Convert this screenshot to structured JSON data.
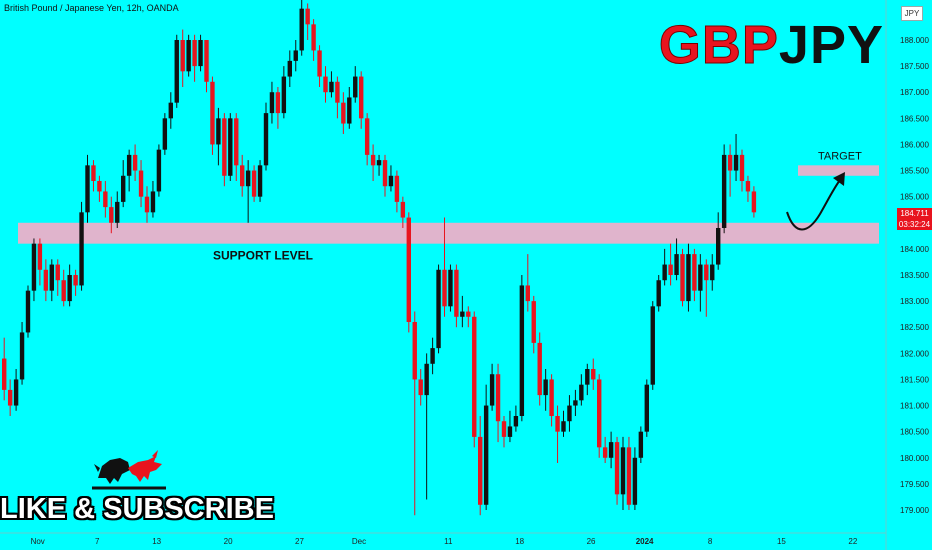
{
  "header": {
    "instrument": "British Pound / Japanese Yen, 12h, OANDA"
  },
  "title": {
    "part1": "GBP",
    "part2": "JPY"
  },
  "currency_badge": "JPY",
  "last_price": {
    "value": "184.711",
    "countdown": "03:32:24"
  },
  "overlay": {
    "like_subscribe": "LIKE & SUBSCRIBE"
  },
  "colors": {
    "background": "#00FFFF",
    "bear": "#E8141E",
    "bull": "#111111",
    "zone": "#E0B4CC",
    "text_red": "#E8141E"
  },
  "chart_data": {
    "type": "candlestick",
    "title": "British Pound / Japanese Yen, 12h, OANDA",
    "ylim": [
      178.75,
      188.35
    ],
    "y_ticks": [
      {
        "v": 188.0,
        "label": "188.000"
      },
      {
        "v": 187.5,
        "label": "187.500"
      },
      {
        "v": 187.0,
        "label": "187.000"
      },
      {
        "v": 186.5,
        "label": "186.500"
      },
      {
        "v": 186.0,
        "label": "186.000"
      },
      {
        "v": 185.5,
        "label": "185.500"
      },
      {
        "v": 185.0,
        "label": "185.000"
      },
      {
        "v": 184.0,
        "label": "184.000"
      },
      {
        "v": 183.5,
        "label": "183.500"
      },
      {
        "v": 183.0,
        "label": "183.000"
      },
      {
        "v": 182.5,
        "label": "182.500"
      },
      {
        "v": 182.0,
        "label": "182.000"
      },
      {
        "v": 181.5,
        "label": "181.500"
      },
      {
        "v": 181.0,
        "label": "181.000"
      },
      {
        "v": 180.5,
        "label": "180.500"
      },
      {
        "v": 180.0,
        "label": "180.000"
      },
      {
        "v": 179.5,
        "label": "179.500"
      },
      {
        "v": 179.0,
        "label": "179.000"
      }
    ],
    "x_ticks": [
      {
        "i": 6,
        "label": "Nov"
      },
      {
        "i": 16,
        "label": "7"
      },
      {
        "i": 26,
        "label": "13"
      },
      {
        "i": 38,
        "label": "20"
      },
      {
        "i": 50,
        "label": "27"
      },
      {
        "i": 60,
        "label": "Dec"
      },
      {
        "i": 75,
        "label": "11"
      },
      {
        "i": 87,
        "label": "18"
      },
      {
        "i": 99,
        "label": "26"
      },
      {
        "i": 108,
        "label": "2024"
      },
      {
        "i": 119,
        "label": "8"
      },
      {
        "i": 131,
        "label": "15"
      },
      {
        "i": 143,
        "label": "22"
      }
    ],
    "candles": [
      [
        181.9,
        181.3,
        182.3,
        181.1
      ],
      [
        181.3,
        181.0,
        181.5,
        180.8
      ],
      [
        181.0,
        181.5,
        181.7,
        180.9
      ],
      [
        181.5,
        182.4,
        182.6,
        181.4
      ],
      [
        182.4,
        183.2,
        183.3,
        182.3
      ],
      [
        183.2,
        184.1,
        184.2,
        183.0
      ],
      [
        184.1,
        183.6,
        184.2,
        183.3
      ],
      [
        183.6,
        183.2,
        183.8,
        183.0
      ],
      [
        183.2,
        183.7,
        183.8,
        183.0
      ],
      [
        183.7,
        183.4,
        183.8,
        183.1
      ],
      [
        183.4,
        183.0,
        183.6,
        182.9
      ],
      [
        183.0,
        183.5,
        183.7,
        182.9
      ],
      [
        183.5,
        183.3,
        183.6,
        183.1
      ],
      [
        183.3,
        184.7,
        184.9,
        183.2
      ],
      [
        184.7,
        185.6,
        185.8,
        184.5
      ],
      [
        185.6,
        185.3,
        185.7,
        185.1
      ],
      [
        185.3,
        185.1,
        185.4,
        184.9
      ],
      [
        185.1,
        184.8,
        185.3,
        184.6
      ],
      [
        184.8,
        184.5,
        185.0,
        184.3
      ],
      [
        184.5,
        184.9,
        185.1,
        184.4
      ],
      [
        184.9,
        185.4,
        185.7,
        184.8
      ],
      [
        185.4,
        185.8,
        185.9,
        185.1
      ],
      [
        185.8,
        185.5,
        186.0,
        185.3
      ],
      [
        185.5,
        185.0,
        185.7,
        184.8
      ],
      [
        185.0,
        184.7,
        185.2,
        184.5
      ],
      [
        184.7,
        185.1,
        185.3,
        184.6
      ],
      [
        185.1,
        185.9,
        186.0,
        185.0
      ],
      [
        185.9,
        186.5,
        186.6,
        185.8
      ],
      [
        186.5,
        186.8,
        187.0,
        186.3
      ],
      [
        186.8,
        188.0,
        188.1,
        186.7
      ],
      [
        188.0,
        187.4,
        188.2,
        187.1
      ],
      [
        187.4,
        188.0,
        188.1,
        187.3
      ],
      [
        188.0,
        187.5,
        188.1,
        187.2
      ],
      [
        187.5,
        188.0,
        188.1,
        187.4
      ],
      [
        188.0,
        187.2,
        188.0,
        187.0
      ],
      [
        187.2,
        186.0,
        187.3,
        185.8
      ],
      [
        186.0,
        186.5,
        186.7,
        185.6
      ],
      [
        186.5,
        185.4,
        186.6,
        185.2
      ],
      [
        185.4,
        186.5,
        186.6,
        185.3
      ],
      [
        186.5,
        185.6,
        186.6,
        185.3
      ],
      [
        185.6,
        185.2,
        185.8,
        185.0
      ],
      [
        185.2,
        185.5,
        185.7,
        184.5
      ],
      [
        185.5,
        185.0,
        185.6,
        184.9
      ],
      [
        185.0,
        185.6,
        185.7,
        184.9
      ],
      [
        185.6,
        186.6,
        186.8,
        185.5
      ],
      [
        186.6,
        187.0,
        187.2,
        186.4
      ],
      [
        187.0,
        186.6,
        187.1,
        186.3
      ],
      [
        186.6,
        187.3,
        187.5,
        186.5
      ],
      [
        187.3,
        187.6,
        187.8,
        187.1
      ],
      [
        187.6,
        187.8,
        188.0,
        187.4
      ],
      [
        187.8,
        188.6,
        188.9,
        187.7
      ],
      [
        188.6,
        188.3,
        188.7,
        188.0
      ],
      [
        188.3,
        187.8,
        188.4,
        187.6
      ],
      [
        187.8,
        187.3,
        187.9,
        187.1
      ],
      [
        187.3,
        187.0,
        187.5,
        186.8
      ],
      [
        187.0,
        187.2,
        187.4,
        186.9
      ],
      [
        187.2,
        186.8,
        187.3,
        186.5
      ],
      [
        186.8,
        186.4,
        187.0,
        186.2
      ],
      [
        186.4,
        186.9,
        187.1,
        186.3
      ],
      [
        186.9,
        187.3,
        187.5,
        186.8
      ],
      [
        187.3,
        186.5,
        187.4,
        186.3
      ],
      [
        186.5,
        185.8,
        186.6,
        185.6
      ],
      [
        185.8,
        185.6,
        186.0,
        185.3
      ],
      [
        185.6,
        185.7,
        185.8,
        185.4
      ],
      [
        185.7,
        185.2,
        185.8,
        185.0
      ],
      [
        185.2,
        185.4,
        185.6,
        185.1
      ],
      [
        185.4,
        184.9,
        185.5,
        184.7
      ],
      [
        184.9,
        184.6,
        185.0,
        184.4
      ],
      [
        184.6,
        182.6,
        184.7,
        182.4
      ],
      [
        182.6,
        181.5,
        182.8,
        178.9
      ],
      [
        181.5,
        181.2,
        181.7,
        181.0
      ],
      [
        181.2,
        181.8,
        182.0,
        179.2
      ],
      [
        181.8,
        182.1,
        182.3,
        181.6
      ],
      [
        182.1,
        183.6,
        183.7,
        182.0
      ],
      [
        183.6,
        182.9,
        184.6,
        182.7
      ],
      [
        182.9,
        183.6,
        183.7,
        182.8
      ],
      [
        183.6,
        182.7,
        183.7,
        182.5
      ],
      [
        182.7,
        182.8,
        183.1,
        182.5
      ],
      [
        182.8,
        182.7,
        182.9,
        182.5
      ],
      [
        182.7,
        180.4,
        182.8,
        180.2
      ],
      [
        180.4,
        179.1,
        180.8,
        178.9
      ],
      [
        179.1,
        181.0,
        181.4,
        179.0
      ],
      [
        181.0,
        181.6,
        181.8,
        180.9
      ],
      [
        181.6,
        180.7,
        181.8,
        180.3
      ],
      [
        180.7,
        180.4,
        180.8,
        180.2
      ],
      [
        180.4,
        180.6,
        180.9,
        180.3
      ],
      [
        180.6,
        180.8,
        181.0,
        180.5
      ],
      [
        180.8,
        183.3,
        183.5,
        180.7
      ],
      [
        183.3,
        183.0,
        183.9,
        182.8
      ],
      [
        183.0,
        182.2,
        183.1,
        182.0
      ],
      [
        182.2,
        181.2,
        182.4,
        181.0
      ],
      [
        181.2,
        181.5,
        181.7,
        180.9
      ],
      [
        181.5,
        180.8,
        181.6,
        180.6
      ],
      [
        180.8,
        180.5,
        181.0,
        179.9
      ],
      [
        180.5,
        180.7,
        180.9,
        180.4
      ],
      [
        180.7,
        181.0,
        181.2,
        180.5
      ],
      [
        181.0,
        181.1,
        181.3,
        180.8
      ],
      [
        181.1,
        181.4,
        181.6,
        181.0
      ],
      [
        181.4,
        181.7,
        181.8,
        181.2
      ],
      [
        181.7,
        181.5,
        181.9,
        181.3
      ],
      [
        181.5,
        180.2,
        181.6,
        180.0
      ],
      [
        180.2,
        180.0,
        180.4,
        179.9
      ],
      [
        180.0,
        180.3,
        180.5,
        179.8
      ],
      [
        180.3,
        179.3,
        180.4,
        179.1
      ],
      [
        179.3,
        180.2,
        180.4,
        179.0
      ],
      [
        180.2,
        179.1,
        180.4,
        179.0
      ],
      [
        179.1,
        180.0,
        180.2,
        179.0
      ],
      [
        180.0,
        180.5,
        180.6,
        179.9
      ],
      [
        180.5,
        181.4,
        181.5,
        180.4
      ],
      [
        181.4,
        182.9,
        183.0,
        181.3
      ],
      [
        182.9,
        183.4,
        183.5,
        182.8
      ],
      [
        183.4,
        183.7,
        184.0,
        183.3
      ],
      [
        183.7,
        183.5,
        184.1,
        183.3
      ],
      [
        183.5,
        183.9,
        184.2,
        183.4
      ],
      [
        183.9,
        183.0,
        184.0,
        182.9
      ],
      [
        183.0,
        183.9,
        184.1,
        182.8
      ],
      [
        183.9,
        183.2,
        184.0,
        183.0
      ],
      [
        183.2,
        183.7,
        183.9,
        182.8
      ],
      [
        183.7,
        183.4,
        183.8,
        182.7
      ],
      [
        183.4,
        183.7,
        183.9,
        183.2
      ],
      [
        183.7,
        184.4,
        184.7,
        183.6
      ],
      [
        184.4,
        185.8,
        186.0,
        184.3
      ],
      [
        185.8,
        185.5,
        186.0,
        185.0
      ],
      [
        185.5,
        185.8,
        186.2,
        185.3
      ],
      [
        185.8,
        185.3,
        185.9,
        185.1
      ],
      [
        185.3,
        185.1,
        185.4,
        184.9
      ],
      [
        185.1,
        184.7,
        185.2,
        184.6
      ]
    ],
    "zones": [
      {
        "name": "support",
        "label": "SUPPORT LEVEL",
        "from": 184.1,
        "to": 184.5
      },
      {
        "name": "target",
        "label": "TARGET",
        "from": 185.4,
        "to": 185.6
      }
    ]
  }
}
